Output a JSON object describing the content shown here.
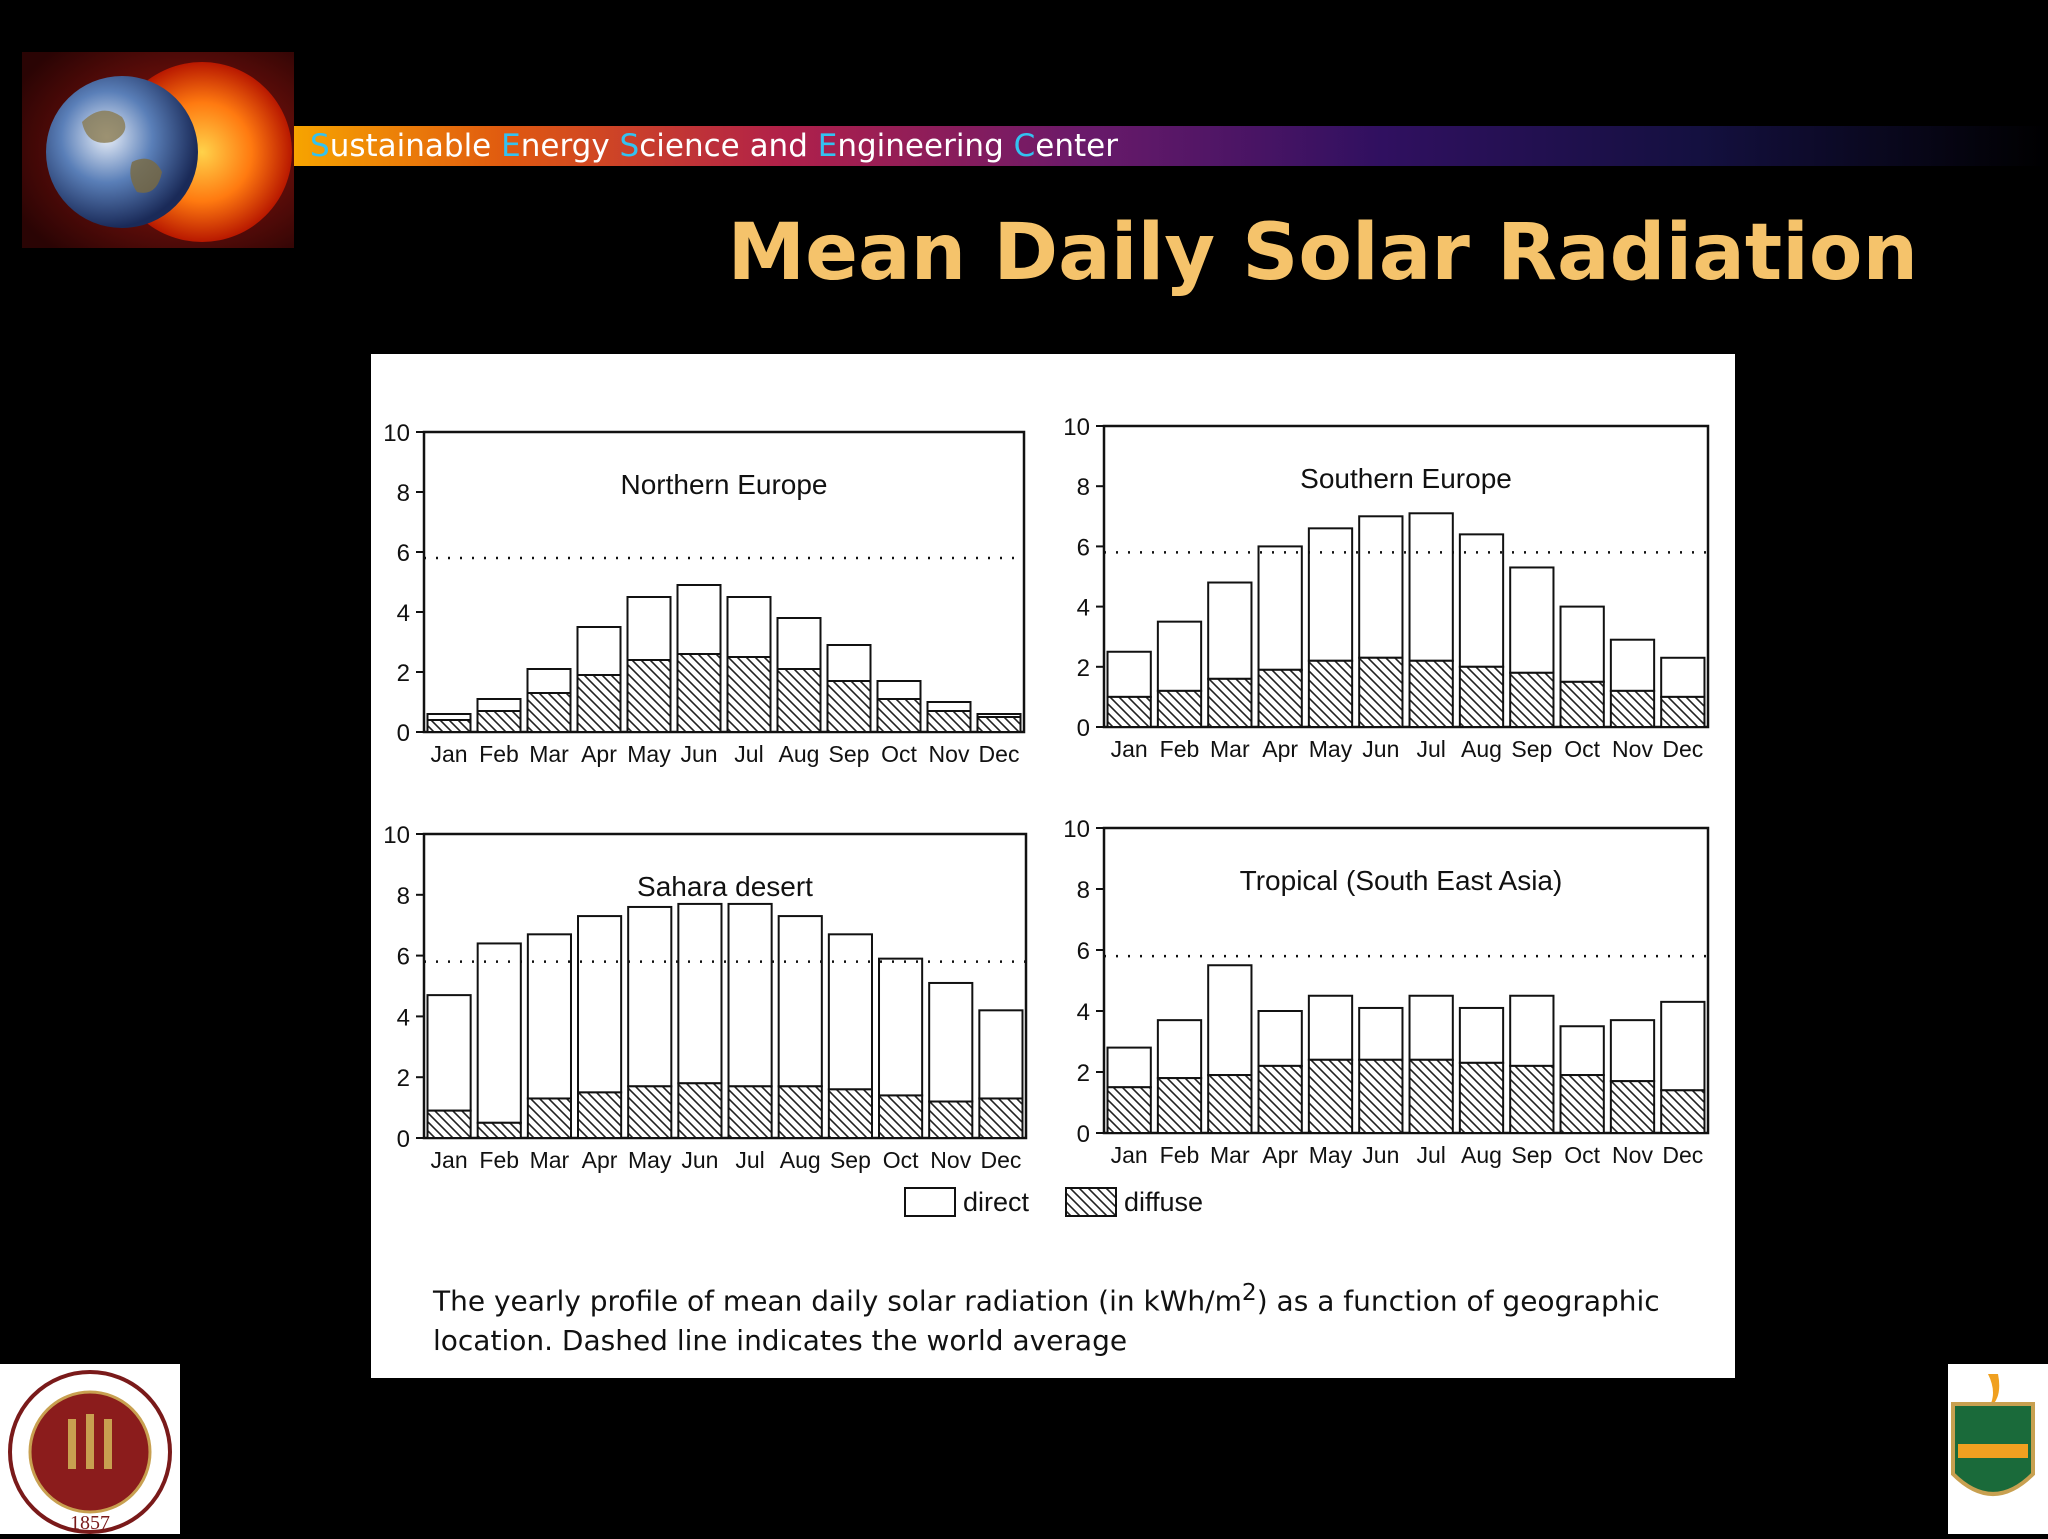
{
  "header": {
    "center_name_parts": [
      {
        "initial": "S",
        "rest": "ustainable "
      },
      {
        "initial": "E",
        "rest": "nergy "
      },
      {
        "initial": "S",
        "rest": "cience and "
      },
      {
        "initial": "E",
        "rest": "ngineering "
      },
      {
        "initial": "C",
        "rest": "enter"
      }
    ],
    "title": "Mean Daily Solar Radiation"
  },
  "colors": {
    "title": "#f5c36b",
    "initials": "#33c2f0",
    "background": "#000000"
  },
  "logos": {
    "left_top": "earth-sun-logo",
    "bottom_left": "fsu-seal",
    "bottom_right": "famu-logo",
    "fsu_year": "1857"
  },
  "caption": {
    "text_before": "The yearly profile of mean daily solar radiation (in kWh/m",
    "superscript": "2",
    "text_after": ") as a function of geographic location. Dashed line indicates the world average"
  },
  "chart_data": [
    {
      "type": "bar",
      "stacked": true,
      "title": "Northern Europe",
      "categories": [
        "Jan",
        "Feb",
        "Mar",
        "Apr",
        "May",
        "Jun",
        "Jul",
        "Aug",
        "Sep",
        "Oct",
        "Nov",
        "Dec"
      ],
      "series": [
        {
          "name": "diffuse",
          "values": [
            0.4,
            0.7,
            1.3,
            1.9,
            2.4,
            2.6,
            2.5,
            2.1,
            1.7,
            1.1,
            0.7,
            0.5
          ]
        },
        {
          "name": "direct",
          "values": [
            0.2,
            0.4,
            0.8,
            1.6,
            2.1,
            2.3,
            2.0,
            1.7,
            1.2,
            0.6,
            0.3,
            0.1
          ]
        }
      ],
      "world_average": 5.8,
      "ylim": [
        0,
        10
      ],
      "yticks": [
        0,
        2,
        4,
        6,
        8,
        10
      ]
    },
    {
      "type": "bar",
      "stacked": true,
      "title": "Southern Europe",
      "categories": [
        "Jan",
        "Feb",
        "Mar",
        "Apr",
        "May",
        "Jun",
        "Jul",
        "Aug",
        "Sep",
        "Oct",
        "Nov",
        "Dec"
      ],
      "series": [
        {
          "name": "diffuse",
          "values": [
            1.0,
            1.2,
            1.6,
            1.9,
            2.2,
            2.3,
            2.2,
            2.0,
            1.8,
            1.5,
            1.2,
            1.0
          ]
        },
        {
          "name": "direct",
          "values": [
            1.5,
            2.3,
            3.2,
            4.1,
            4.4,
            4.7,
            4.9,
            4.4,
            3.5,
            2.5,
            1.7,
            1.3
          ]
        }
      ],
      "world_average": 5.8,
      "ylim": [
        0,
        10
      ],
      "yticks": [
        0,
        2,
        4,
        6,
        8,
        10
      ]
    },
    {
      "type": "bar",
      "stacked": true,
      "title": "Sahara desert",
      "categories": [
        "Jan",
        "Feb",
        "Mar",
        "Apr",
        "May",
        "Jun",
        "Jul",
        "Aug",
        "Sep",
        "Oct",
        "Nov",
        "Dec"
      ],
      "series": [
        {
          "name": "diffuse",
          "values": [
            0.9,
            0.5,
            1.3,
            1.5,
            1.7,
            1.8,
            1.7,
            1.7,
            1.6,
            1.4,
            1.2,
            1.3
          ]
        },
        {
          "name": "direct",
          "values": [
            3.8,
            5.9,
            5.4,
            5.8,
            5.9,
            5.9,
            6.0,
            5.6,
            5.1,
            4.5,
            3.9,
            2.9
          ]
        }
      ],
      "world_average": 5.8,
      "ylim": [
        0,
        10
      ],
      "yticks": [
        0,
        2,
        4,
        6,
        8,
        10
      ]
    },
    {
      "type": "bar",
      "stacked": true,
      "title": "Tropical (South East Asia)",
      "categories": [
        "Jan",
        "Feb",
        "Mar",
        "Apr",
        "May",
        "Jun",
        "Jul",
        "Aug",
        "Sep",
        "Oct",
        "Nov",
        "Dec"
      ],
      "series": [
        {
          "name": "diffuse",
          "values": [
            1.5,
            1.8,
            1.9,
            2.2,
            2.4,
            2.4,
            2.4,
            2.3,
            2.2,
            1.9,
            1.7,
            1.4
          ]
        },
        {
          "name": "direct",
          "values": [
            1.3,
            1.9,
            3.6,
            1.8,
            2.1,
            1.7,
            2.1,
            1.8,
            2.3,
            1.6,
            2.0,
            2.9
          ]
        }
      ],
      "world_average": 5.8,
      "ylim": [
        0,
        10
      ],
      "yticks": [
        0,
        2,
        4,
        6,
        8,
        10
      ]
    }
  ],
  "legend": {
    "direct": "direct",
    "diffuse": "diffuse"
  }
}
